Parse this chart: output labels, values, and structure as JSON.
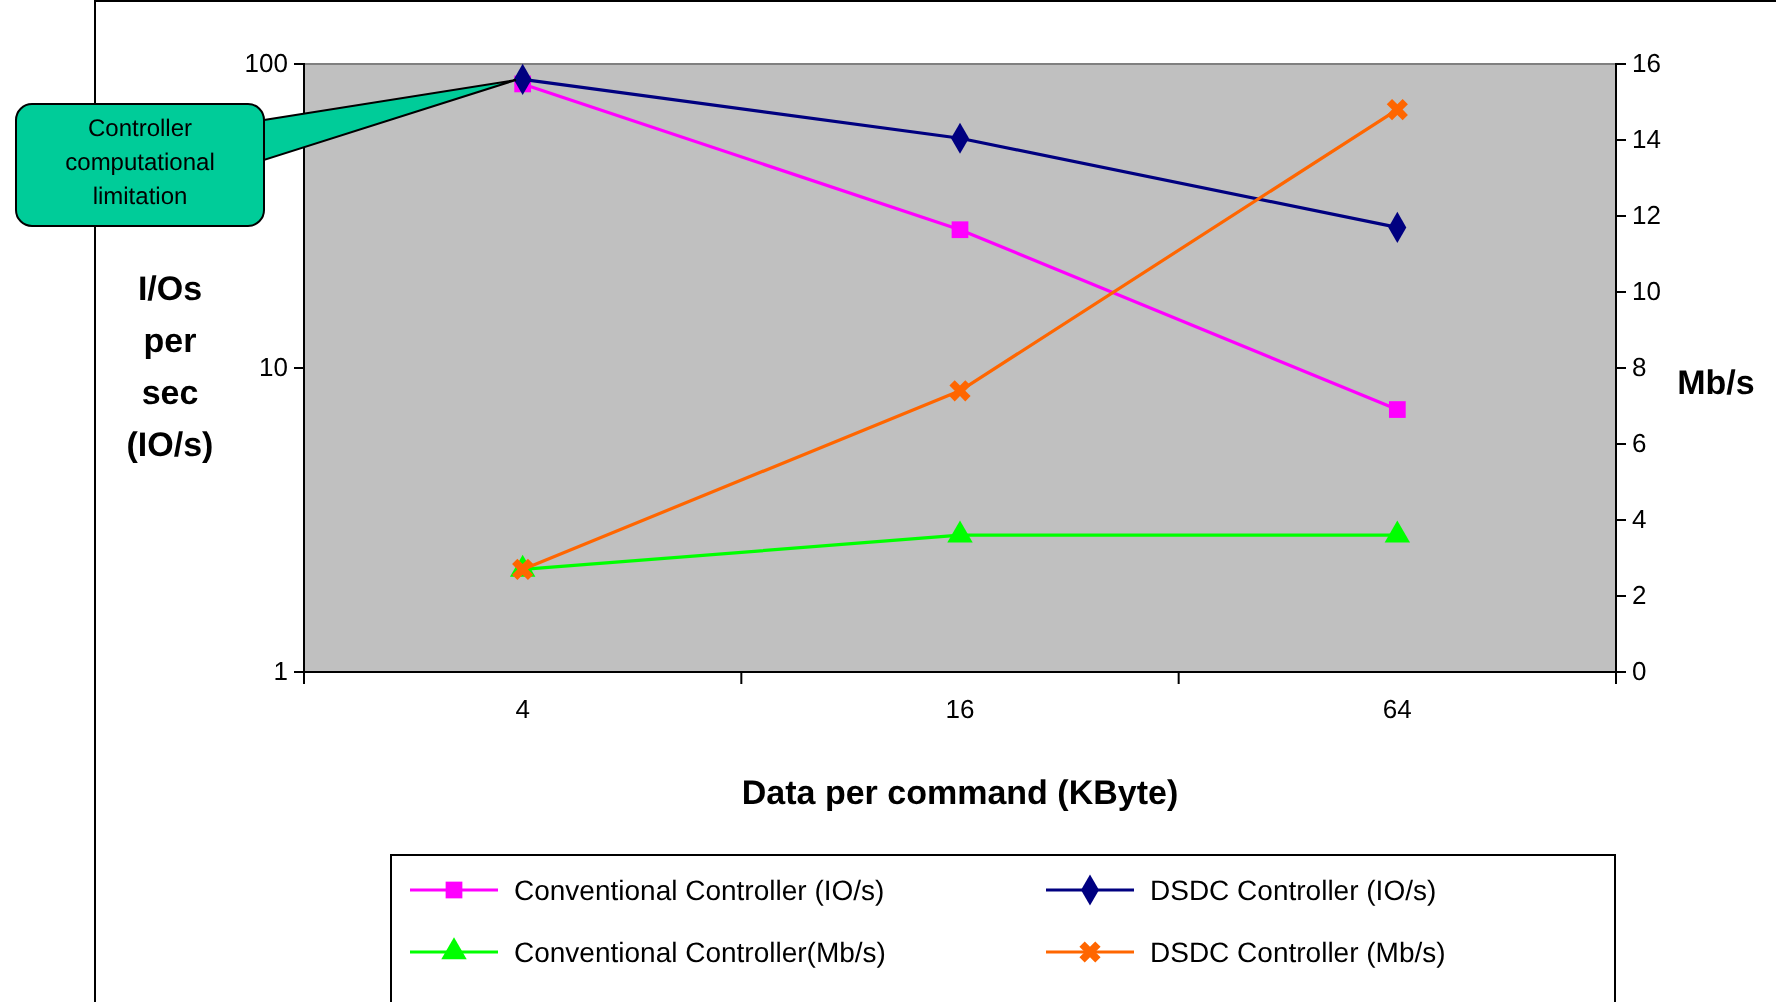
{
  "chart_data": {
    "type": "line",
    "xlabel": "Data per command (KByte)",
    "ylabel": "I/Os per sec (IO/s)",
    "y2label": "Mb/s",
    "categories": [
      "4",
      "16",
      "64"
    ],
    "log": "y",
    "ylim": [
      1,
      100
    ],
    "yticks": [
      1,
      10,
      100
    ],
    "y2lim": [
      0,
      16
    ],
    "y2ticks": [
      0,
      2,
      4,
      6,
      8,
      10,
      12,
      14,
      16
    ],
    "grid": false,
    "legend": "bottom",
    "series": [
      {
        "name": "Conventional Controller (IO/s)",
        "color": "#ff00ff",
        "marker": "square",
        "values": [
          86,
          28.5,
          7.3
        ]
      },
      {
        "name": "DSDC Controller (IO/s)",
        "color": "#000080",
        "marker": "diamond",
        "values": [
          89,
          57,
          29
        ]
      },
      {
        "name": "Conventional Controller(Mb/s)",
        "color": "#00ff00",
        "marker": "triangle",
        "axis": "y2",
        "values": [
          2.7,
          3.6,
          3.6
        ]
      },
      {
        "name": "DSDC Controller (Mb/s)",
        "color": "#ff6600",
        "marker": "cross",
        "axis": "y2",
        "values": [
          2.7,
          7.4,
          14.8
        ]
      }
    ],
    "annotations": [
      "Controller computational limitation"
    ]
  }
}
